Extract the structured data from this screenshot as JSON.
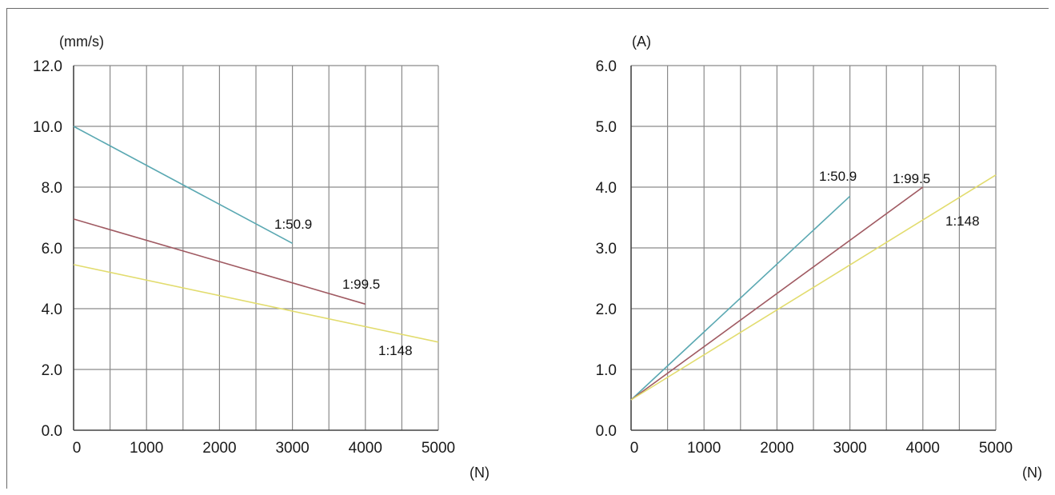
{
  "chart_data": [
    {
      "type": "line",
      "ylabel": "(mm/s)",
      "xlabel": "(N)",
      "xlim": [
        0,
        5000
      ],
      "ylim": [
        0,
        12
      ],
      "xticks": [
        0,
        1000,
        2000,
        3000,
        4000,
        5000
      ],
      "xtick_labels": [
        "0",
        "1000",
        "2000",
        "3000",
        "4000",
        "5000"
      ],
      "yticks": [
        0,
        2,
        4,
        6,
        8,
        10,
        12
      ],
      "ytick_labels": [
        "0.0",
        "2.0",
        "4.0",
        "6.0",
        "8.0",
        "10.0",
        "12.0"
      ],
      "x_grid_step": 500,
      "grid": true,
      "series": [
        {
          "name": "1:50.9",
          "color": "#5aa8b2",
          "x": [
            0,
            3000
          ],
          "y": [
            10.0,
            6.15
          ]
        },
        {
          "name": "1:99.5",
          "color": "#a05a62",
          "x": [
            0,
            4000
          ],
          "y": [
            6.95,
            4.15
          ]
        },
        {
          "name": "1:148",
          "color": "#e2dc6e",
          "x": [
            0,
            5000
          ],
          "y": [
            5.45,
            2.9
          ]
        }
      ]
    },
    {
      "type": "line",
      "ylabel": "(A)",
      "xlabel": "(N)",
      "xlim": [
        0,
        5000
      ],
      "ylim": [
        0,
        6
      ],
      "xticks": [
        0,
        1000,
        2000,
        3000,
        4000,
        5000
      ],
      "xtick_labels": [
        "0",
        "1000",
        "2000",
        "3000",
        "4000",
        "5000"
      ],
      "yticks": [
        0,
        1,
        2,
        3,
        4,
        5,
        6
      ],
      "ytick_labels": [
        "0.0",
        "1.0",
        "2.0",
        "3.0",
        "4.0",
        "5.0",
        "6.0"
      ],
      "x_grid_step": 500,
      "grid": true,
      "series": [
        {
          "name": "1:50.9",
          "color": "#5aa8b2",
          "x": [
            0,
            3000
          ],
          "y": [
            0.5,
            3.85
          ]
        },
        {
          "name": "1:99.5",
          "color": "#a05a62",
          "x": [
            0,
            4000
          ],
          "y": [
            0.5,
            4.0
          ]
        },
        {
          "name": "1:148",
          "color": "#e2dc6e",
          "x": [
            0,
            5000
          ],
          "y": [
            0.5,
            4.2
          ]
        }
      ]
    }
  ]
}
